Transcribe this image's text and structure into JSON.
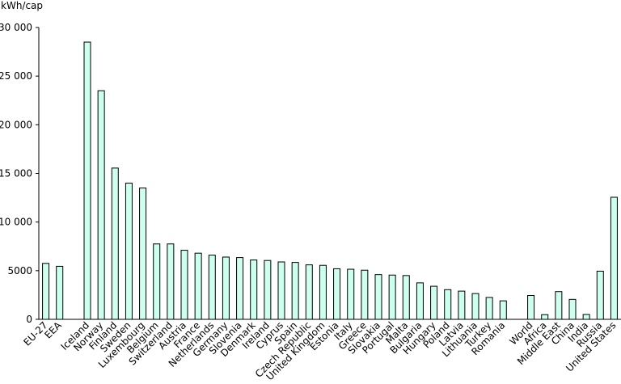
{
  "chart_data": {
    "type": "bar",
    "ylabel": "kWh/cap",
    "ylim": [
      0,
      30000
    ],
    "yticks": [
      "0",
      "5000",
      "10 000",
      "15 000",
      "20 000",
      "25 000",
      "30 000"
    ],
    "grid": false,
    "bar_color": "#ccffee",
    "bar_border_color": "#000000",
    "categories": [
      "EU-27",
      "EEA",
      "",
      "Iceland",
      "Norway",
      "Finland",
      "Sweden",
      "Luxembourg",
      "Belgium",
      "Switzerland",
      "Austria",
      "France",
      "Netherlands",
      "Germany",
      "Slovenia",
      "Denmark",
      "Ireland",
      "Cyprus",
      "Spain",
      "Czech Republic",
      "United Kingdom",
      "Estonia",
      "Italy",
      "Greece",
      "Slovakia",
      "Portugal",
      "Malta",
      "Bulgaria",
      "Hungary",
      "Poland",
      "Latvia",
      "Lithuania",
      "Turkey",
      "Romania",
      "",
      "World",
      "Africa",
      "Middle East",
      "China",
      "India",
      "Russia",
      "United States"
    ],
    "values": [
      5750,
      5450,
      null,
      28500,
      23500,
      15550,
      14000,
      13500,
      7750,
      7750,
      7100,
      6800,
      6600,
      6400,
      6350,
      6100,
      6050,
      5900,
      5850,
      5600,
      5550,
      5200,
      5150,
      5050,
      4600,
      4550,
      4500,
      3750,
      3400,
      3050,
      2900,
      2650,
      2250,
      1900,
      null,
      2450,
      480,
      2850,
      2050,
      500,
      4950,
      12550
    ]
  }
}
